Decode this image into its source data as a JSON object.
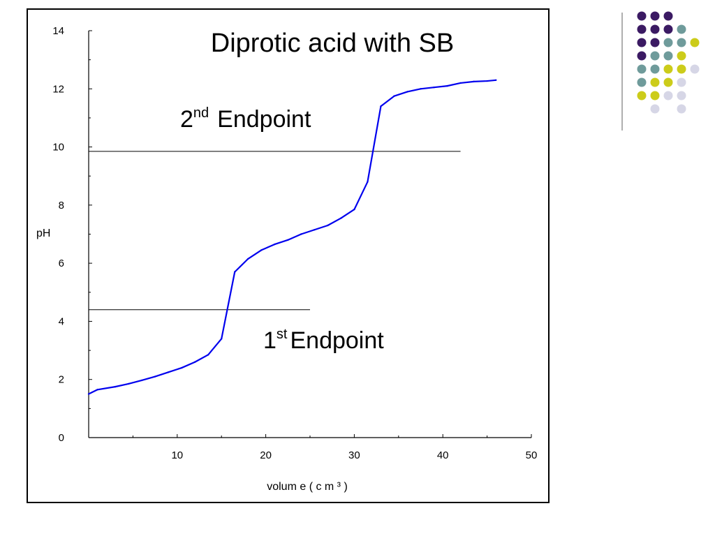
{
  "chart_data": {
    "type": "line",
    "title": "Diprotic acid with SB",
    "xlabel": "volum e ( c m ³ )",
    "ylabel": "pH",
    "xlim": [
      0,
      50
    ],
    "ylim": [
      0,
      14
    ],
    "x_ticks": [
      10,
      20,
      30,
      40,
      50
    ],
    "y_ticks": [
      0,
      2,
      4,
      6,
      8,
      10,
      12,
      14
    ],
    "grid": false,
    "series": [
      {
        "color": "#0000ee",
        "x": [
          0,
          1,
          3,
          4.5,
          6,
          7.5,
          9,
          10.5,
          12,
          13.5,
          15,
          16.5,
          18,
          19.5,
          21,
          22.5,
          24,
          25.5,
          27,
          28.5,
          30,
          31.5,
          33,
          34.5,
          36,
          37.5,
          39,
          40.5,
          42,
          43.5,
          45,
          46
        ],
        "y": [
          1.5,
          1.65,
          1.75,
          1.85,
          1.97,
          2.1,
          2.25,
          2.4,
          2.6,
          2.85,
          3.4,
          5.7,
          6.15,
          6.45,
          6.65,
          6.8,
          7.0,
          7.15,
          7.3,
          7.55,
          7.85,
          8.8,
          11.4,
          11.75,
          11.9,
          12.0,
          12.05,
          12.1,
          12.2,
          12.25,
          12.27,
          12.3
        ]
      }
    ],
    "reference_lines": [
      {
        "y": 9.85,
        "x_end": 42,
        "label_main": "2",
        "label_sup": "nd",
        "label_rest": "Endpoint"
      },
      {
        "y": 4.4,
        "x_end": 25,
        "label_main": "1",
        "label_sup": "st",
        "label_rest": "Endpoint"
      }
    ]
  },
  "decor": {
    "colors": {
      "purple": "#3b1a63",
      "teal": "#6f9b9b",
      "yellow": "#cccc1a",
      "lavender": "#d6d6e6",
      "divider": "#7a7a7a"
    },
    "dot_rows": [
      [
        "purple",
        "purple",
        "purple",
        null,
        null
      ],
      [
        "purple",
        "purple",
        "purple",
        "teal",
        null
      ],
      [
        "purple",
        "purple",
        "teal",
        "teal",
        "yellow"
      ],
      [
        "purple",
        "teal",
        "teal",
        "yellow",
        null
      ],
      [
        "teal",
        "teal",
        "yellow",
        "yellow",
        "lavender"
      ],
      [
        "teal",
        "yellow",
        "yellow",
        "lavender",
        null
      ],
      [
        "yellow",
        "yellow",
        "lavender",
        "lavender",
        null
      ],
      [
        null,
        "lavender",
        null,
        "lavender",
        null
      ]
    ]
  }
}
